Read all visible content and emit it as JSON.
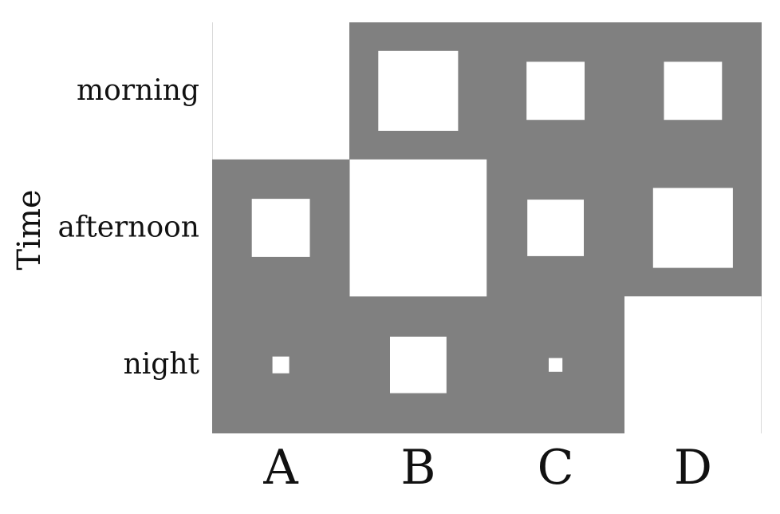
{
  "chart_data": {
    "type": "heatmap",
    "style": "hinton",
    "title": "",
    "xlabel": "",
    "ylabel": "Time",
    "x_categories": [
      "A",
      "B",
      "C",
      "D"
    ],
    "y_categories": [
      "morning",
      "afternoon",
      "night"
    ],
    "values": [
      [
        1.0,
        0.34,
        0.18,
        0.18
      ],
      [
        0.18,
        1.0,
        0.17,
        0.34
      ],
      [
        0.015,
        0.17,
        0.01,
        1.0
      ]
    ],
    "colors": {
      "background": "#808080",
      "square": "#ffffff"
    }
  }
}
